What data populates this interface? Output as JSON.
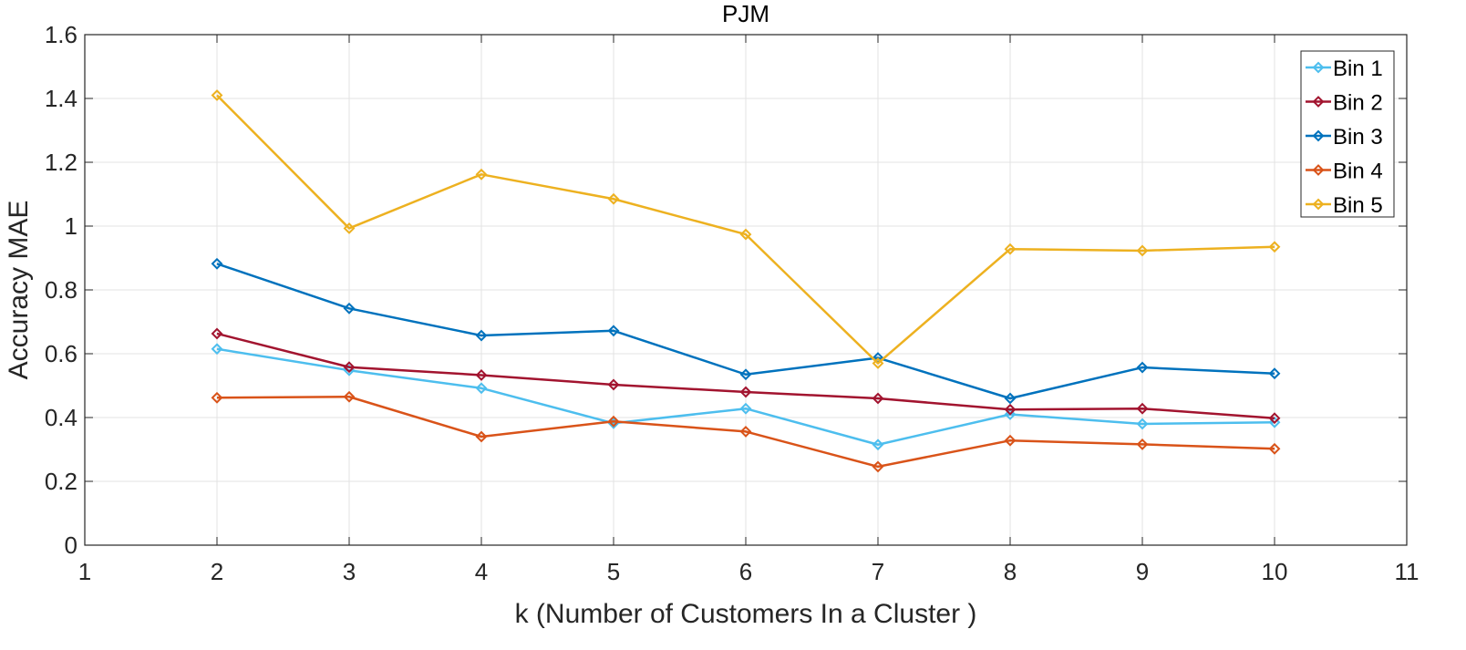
{
  "chart_data": {
    "type": "line",
    "title": "PJM",
    "xlabel": "k (Number of Customers In a Cluster )",
    "ylabel": "Accuracy MAE",
    "xlim": [
      1,
      11
    ],
    "ylim": [
      0,
      1.6
    ],
    "xticks": [
      "1",
      "2",
      "3",
      "4",
      "5",
      "6",
      "7",
      "8",
      "9",
      "10",
      "11"
    ],
    "yticks": [
      "0",
      "0.2",
      "0.4",
      "0.6",
      "0.8",
      "1",
      "1.2",
      "1.4",
      "1.6"
    ],
    "grid": true,
    "legend_position": "top-right",
    "x": [
      2,
      3,
      4,
      5,
      6,
      7,
      8,
      9,
      10
    ],
    "series": [
      {
        "name": "Bin 1",
        "color": "#4dbeee",
        "values": [
          0.615,
          0.548,
          0.492,
          0.382,
          0.428,
          0.315,
          0.41,
          0.38,
          0.385
        ]
      },
      {
        "name": "Bin 2",
        "color": "#a2142f",
        "values": [
          0.663,
          0.558,
          0.533,
          0.503,
          0.48,
          0.46,
          0.425,
          0.428,
          0.398
        ]
      },
      {
        "name": "Bin 3",
        "color": "#0072bd",
        "values": [
          0.882,
          0.742,
          0.657,
          0.672,
          0.535,
          0.587,
          0.46,
          0.557,
          0.538
        ]
      },
      {
        "name": "Bin 4",
        "color": "#d95319",
        "values": [
          0.462,
          0.465,
          0.34,
          0.388,
          0.356,
          0.246,
          0.328,
          0.316,
          0.302
        ]
      },
      {
        "name": "Bin 5",
        "color": "#edb120",
        "values": [
          1.41,
          0.993,
          1.162,
          1.085,
          0.974,
          0.57,
          0.928,
          0.923,
          0.935
        ]
      }
    ]
  }
}
